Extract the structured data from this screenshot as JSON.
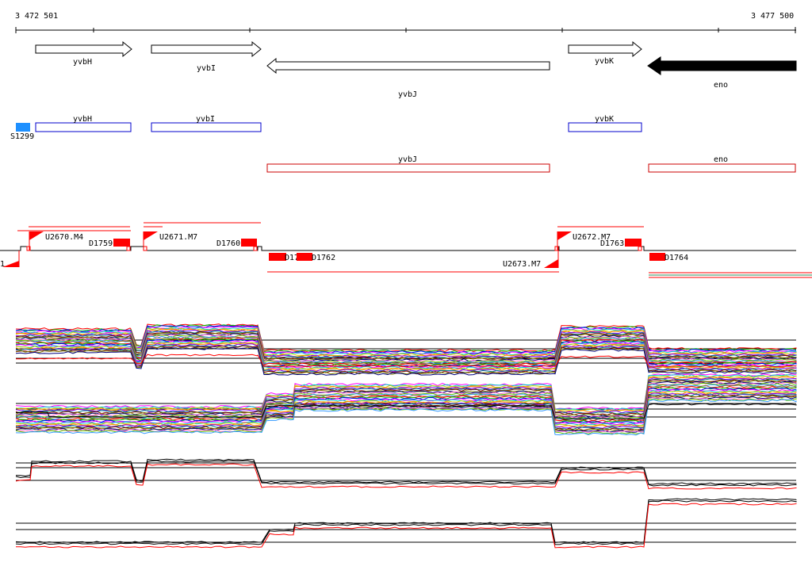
{
  "ruler": {
    "start_label": "3 472 501",
    "end_label": "3 477 500"
  },
  "genes": [
    {
      "id": "yvbH",
      "label": "yvbH",
      "strand": "+",
      "filled": false
    },
    {
      "id": "yvbI",
      "label": "yvbI",
      "strand": "+",
      "filled": false
    },
    {
      "id": "yvbJ",
      "label": "yvbJ",
      "strand": "-",
      "filled": false
    },
    {
      "id": "yvbK",
      "label": "yvbK",
      "strand": "+",
      "filled": false
    },
    {
      "id": "eno",
      "label": "eno",
      "strand": "-",
      "filled": true
    }
  ],
  "features_blue": [
    {
      "label": "yvbH"
    },
    {
      "label": "yvbI"
    },
    {
      "label": "yvbK"
    }
  ],
  "feature_s": {
    "label": "S1299",
    "color": "#1e90ff"
  },
  "features_red": [
    {
      "label": "yvbJ"
    },
    {
      "label": "eno"
    }
  ],
  "upstream_labels": [
    {
      "label": "U2670.M4"
    },
    {
      "label": "U2671.M7"
    },
    {
      "label": "U2672.M7"
    },
    {
      "label": "U2673.M7"
    }
  ],
  "downstream_labels": [
    {
      "label": "D1759"
    },
    {
      "label": "D1760"
    },
    {
      "label": "D17"
    },
    {
      "label": "D1762"
    },
    {
      "label": "D1763"
    },
    {
      "label": "D1764"
    }
  ],
  "left_edge_label": "1",
  "colors": {
    "feature_blue": "#0000cc",
    "feature_red": "#cc0000",
    "marker_red": "#ff0000",
    "profile_red": "#ff0000",
    "axis": "#000000"
  }
}
